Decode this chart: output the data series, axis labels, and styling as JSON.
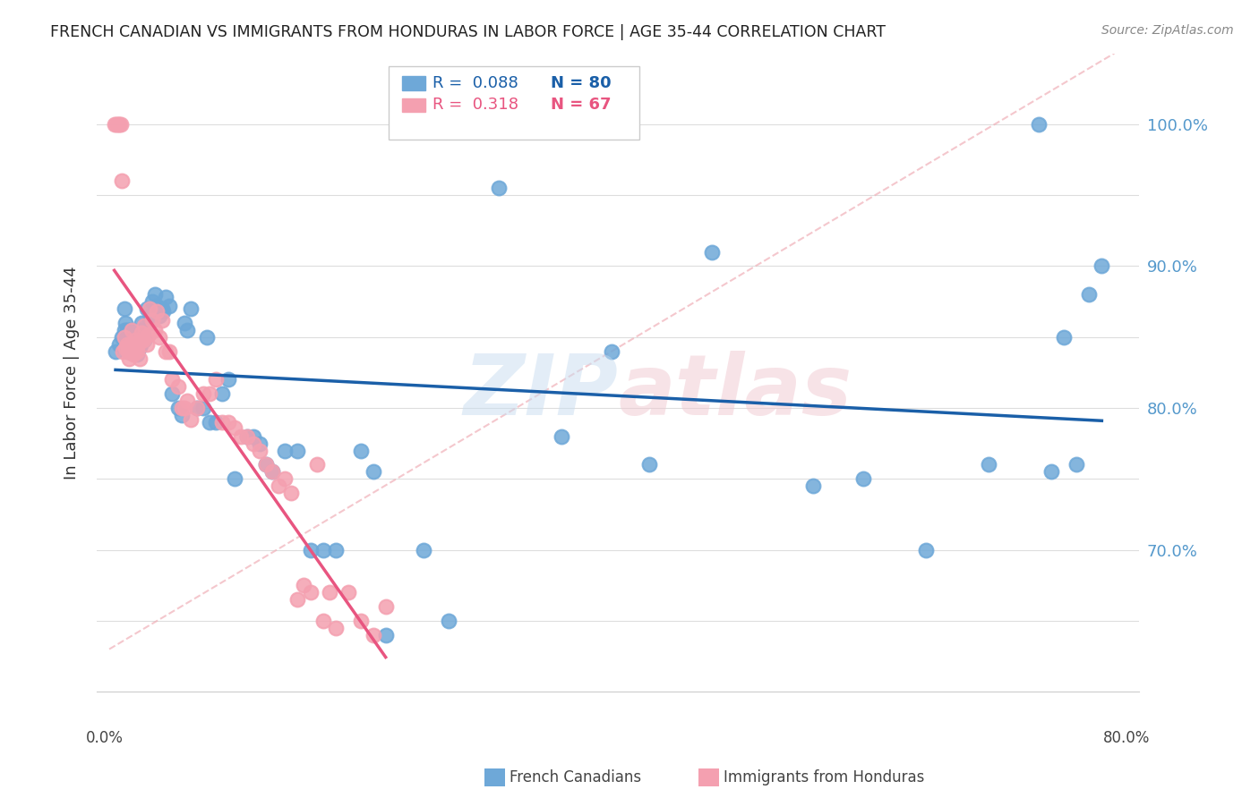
{
  "title": "FRENCH CANADIAN VS IMMIGRANTS FROM HONDURAS IN LABOR FORCE | AGE 35-44 CORRELATION CHART",
  "source": "Source: ZipAtlas.com",
  "ylabel": "In Labor Force | Age 35-44",
  "blue_R": "0.088",
  "blue_N": "80",
  "pink_R": "0.318",
  "pink_N": "67",
  "blue_color": "#6ea8d8",
  "pink_color": "#f4a0b0",
  "blue_line_color": "#1a5fa8",
  "pink_line_color": "#e85580",
  "blue_points_x": [
    0.005,
    0.008,
    0.01,
    0.012,
    0.012,
    0.013,
    0.014,
    0.015,
    0.015,
    0.016,
    0.017,
    0.018,
    0.018,
    0.019,
    0.02,
    0.02,
    0.021,
    0.022,
    0.023,
    0.024,
    0.025,
    0.025,
    0.026,
    0.027,
    0.028,
    0.03,
    0.032,
    0.033,
    0.034,
    0.036,
    0.038,
    0.04,
    0.042,
    0.043,
    0.045,
    0.048,
    0.05,
    0.055,
    0.058,
    0.06,
    0.062,
    0.065,
    0.07,
    0.075,
    0.078,
    0.08,
    0.085,
    0.09,
    0.095,
    0.1,
    0.11,
    0.115,
    0.12,
    0.125,
    0.13,
    0.14,
    0.15,
    0.16,
    0.17,
    0.18,
    0.2,
    0.21,
    0.22,
    0.25,
    0.27,
    0.31,
    0.36,
    0.4,
    0.43,
    0.48,
    0.56,
    0.6,
    0.65,
    0.7,
    0.74,
    0.75,
    0.76,
    0.77,
    0.78,
    0.79
  ],
  "blue_points_y": [
    0.84,
    0.845,
    0.85,
    0.855,
    0.87,
    0.86,
    0.855,
    0.84,
    0.85,
    0.855,
    0.845,
    0.84,
    0.855,
    0.845,
    0.84,
    0.848,
    0.842,
    0.838,
    0.85,
    0.843,
    0.845,
    0.855,
    0.86,
    0.852,
    0.848,
    0.87,
    0.86,
    0.865,
    0.875,
    0.88,
    0.872,
    0.865,
    0.87,
    0.868,
    0.878,
    0.872,
    0.81,
    0.8,
    0.795,
    0.86,
    0.855,
    0.87,
    0.8,
    0.8,
    0.85,
    0.79,
    0.79,
    0.81,
    0.82,
    0.75,
    0.78,
    0.78,
    0.775,
    0.76,
    0.755,
    0.77,
    0.77,
    0.7,
    0.7,
    0.7,
    0.77,
    0.755,
    0.64,
    0.7,
    0.65,
    0.955,
    0.78,
    0.84,
    0.76,
    0.91,
    0.745,
    0.75,
    0.7,
    0.76,
    1.0,
    0.755,
    0.85,
    0.76,
    0.88,
    0.9
  ],
  "pink_points_x": [
    0.004,
    0.006,
    0.007,
    0.008,
    0.009,
    0.01,
    0.011,
    0.012,
    0.013,
    0.014,
    0.015,
    0.016,
    0.017,
    0.018,
    0.019,
    0.02,
    0.021,
    0.022,
    0.023,
    0.024,
    0.025,
    0.026,
    0.027,
    0.028,
    0.03,
    0.031,
    0.032,
    0.034,
    0.036,
    0.038,
    0.04,
    0.042,
    0.045,
    0.048,
    0.05,
    0.055,
    0.058,
    0.06,
    0.062,
    0.065,
    0.07,
    0.075,
    0.08,
    0.085,
    0.09,
    0.095,
    0.1,
    0.105,
    0.11,
    0.115,
    0.12,
    0.125,
    0.13,
    0.135,
    0.14,
    0.145,
    0.15,
    0.155,
    0.16,
    0.165,
    0.17,
    0.175,
    0.18,
    0.19,
    0.2,
    0.21,
    0.22
  ],
  "pink_points_y": [
    1.0,
    1.0,
    1.0,
    1.0,
    1.0,
    0.96,
    0.84,
    0.85,
    0.842,
    0.845,
    0.84,
    0.835,
    0.845,
    0.855,
    0.838,
    0.84,
    0.848,
    0.84,
    0.845,
    0.835,
    0.848,
    0.853,
    0.848,
    0.858,
    0.845,
    0.852,
    0.87,
    0.862,
    0.855,
    0.868,
    0.85,
    0.862,
    0.84,
    0.84,
    0.82,
    0.815,
    0.8,
    0.8,
    0.805,
    0.792,
    0.8,
    0.81,
    0.81,
    0.82,
    0.79,
    0.79,
    0.786,
    0.78,
    0.78,
    0.775,
    0.77,
    0.76,
    0.755,
    0.745,
    0.75,
    0.74,
    0.665,
    0.675,
    0.67,
    0.76,
    0.65,
    0.67,
    0.645,
    0.67,
    0.65,
    0.64,
    0.66
  ]
}
